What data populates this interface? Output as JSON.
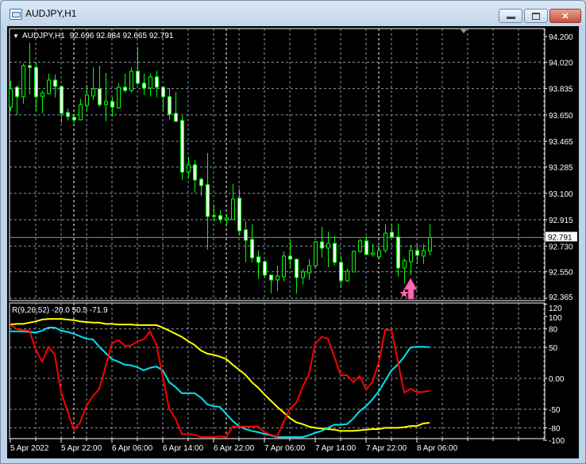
{
  "window": {
    "title": "AUDJPY,H1",
    "buttons": {
      "minimize": "minimize-icon",
      "maximize": "maximize-icon",
      "close": "close-icon"
    }
  },
  "chart_header": {
    "symbol": "AUDJPY,H1",
    "ohlc": "92.696 92.884 92.665 92.791"
  },
  "indicator_header": {
    "label": "R(9,26,52) -20.0 50.5 -71.9"
  },
  "colors": {
    "bull_body": "#000000",
    "bear_body": "#ffffff",
    "candle_outline": "#00ff00",
    "grid": "#8a96a8",
    "red_line": "#ff0000",
    "cyan_line": "#00e5ee",
    "yellow_line": "#ffff00",
    "marker": "#ff69b4",
    "background": "#000000"
  },
  "current_price": "92.791",
  "price_axis": [
    "94.200",
    "94.020",
    "93.835",
    "93.650",
    "93.465",
    "93.285",
    "93.100",
    "92.915",
    "92.730",
    "92.550",
    "92.365"
  ],
  "indicator_axis": [
    "120",
    "100",
    "80",
    "50",
    "0.00",
    "-50",
    "-80",
    "-100"
  ],
  "time_axis": [
    "5 Apr 2022",
    "5 Apr 22:00",
    "6 Apr 06:00",
    "6 Apr 14:00",
    "6 Apr 22:00",
    "7 Apr 06:00",
    "7 Apr 14:00",
    "7 Apr 22:00",
    "8 Apr 06:00"
  ],
  "chart_data": [
    {
      "type": "candlestick",
      "symbol": "AUDJPY",
      "timeframe": "H1",
      "ylim": [
        92.365,
        94.2
      ],
      "grid": true,
      "candles": [
        [
          93.705,
          93.889,
          93.678,
          93.833
        ],
        [
          93.844,
          93.856,
          93.65,
          93.778
        ],
        [
          93.778,
          94.011,
          93.728,
          93.995
        ],
        [
          93.995,
          94.156,
          93.794,
          93.983
        ],
        [
          93.983,
          94.022,
          93.678,
          93.778
        ],
        [
          93.778,
          93.822,
          93.661,
          93.805
        ],
        [
          93.8,
          93.939,
          93.794,
          93.894
        ],
        [
          93.894,
          93.933,
          93.772,
          93.85
        ],
        [
          93.85,
          93.856,
          93.594,
          93.661
        ],
        [
          93.666,
          93.694,
          93.611,
          93.639
        ],
        [
          93.633,
          93.661,
          93.594,
          93.616
        ],
        [
          93.616,
          93.761,
          93.611,
          93.722
        ],
        [
          93.717,
          93.861,
          93.678,
          93.789
        ],
        [
          93.783,
          93.983,
          93.755,
          93.833
        ],
        [
          93.833,
          93.995,
          93.705,
          93.722
        ],
        [
          93.722,
          93.944,
          93.605,
          93.744
        ],
        [
          93.744,
          93.772,
          93.639,
          93.705
        ],
        [
          93.7,
          93.872,
          93.694,
          93.844
        ],
        [
          93.844,
          93.939,
          93.805,
          93.822
        ],
        [
          93.822,
          93.983,
          93.805,
          93.956
        ],
        [
          93.956,
          94.128,
          93.861,
          93.872
        ],
        [
          93.872,
          93.939,
          93.789,
          93.839
        ],
        [
          93.839,
          93.939,
          93.778,
          93.917
        ],
        [
          93.917,
          93.961,
          93.772,
          93.844
        ],
        [
          93.844,
          93.844,
          93.678,
          93.778
        ],
        [
          93.778,
          93.839,
          93.616,
          93.655
        ],
        [
          93.661,
          93.811,
          93.605,
          93.605
        ],
        [
          93.611,
          93.644,
          93.194,
          93.249
        ],
        [
          93.249,
          93.355,
          93.205,
          93.3
        ],
        [
          93.3,
          93.333,
          93.105,
          93.194
        ],
        [
          93.199,
          93.211,
          93.083,
          93.155
        ],
        [
          93.161,
          93.383,
          92.705,
          92.938
        ],
        [
          92.944,
          93.022,
          92.905,
          92.938
        ],
        [
          92.944,
          92.983,
          92.894,
          92.916
        ],
        [
          92.916,
          92.955,
          92.883,
          92.927
        ],
        [
          92.916,
          93.166,
          92.916,
          93.06
        ],
        [
          93.066,
          93.133,
          92.805,
          92.838
        ],
        [
          92.844,
          92.905,
          92.616,
          92.771
        ],
        [
          92.777,
          92.883,
          92.616,
          92.649
        ],
        [
          92.655,
          92.699,
          92.499,
          92.616
        ],
        [
          92.621,
          92.632,
          92.51,
          92.527
        ],
        [
          92.527,
          92.527,
          92.399,
          92.493
        ],
        [
          92.493,
          92.593,
          92.415,
          92.521
        ],
        [
          92.516,
          92.693,
          92.482,
          92.66
        ],
        [
          92.66,
          92.771,
          92.577,
          92.638
        ],
        [
          92.638,
          92.643,
          92.399,
          92.51
        ],
        [
          92.51,
          92.571,
          92.46,
          92.549
        ],
        [
          92.543,
          92.638,
          92.493,
          92.593
        ],
        [
          92.593,
          92.766,
          92.577,
          92.76
        ],
        [
          92.76,
          92.866,
          92.649,
          92.716
        ],
        [
          92.716,
          92.832,
          92.582,
          92.749
        ],
        [
          92.749,
          92.799,
          92.593,
          92.616
        ],
        [
          92.616,
          92.666,
          92.438,
          92.488
        ],
        [
          92.488,
          92.571,
          92.477,
          92.554
        ],
        [
          92.549,
          92.699,
          92.549,
          92.693
        ],
        [
          92.693,
          92.782,
          92.682,
          92.766
        ],
        [
          92.766,
          92.799,
          92.666,
          92.671
        ],
        [
          92.671,
          92.749,
          92.655,
          92.682
        ],
        [
          92.655,
          92.732,
          92.655,
          92.699
        ],
        [
          92.699,
          92.883,
          92.682,
          92.821
        ],
        [
          92.827,
          92.888,
          92.788,
          92.794
        ],
        [
          92.794,
          92.888,
          92.516,
          92.577
        ],
        [
          92.577,
          92.643,
          92.466,
          92.627
        ],
        [
          92.621,
          92.738,
          92.527,
          92.699
        ],
        [
          92.699,
          92.744,
          92.605,
          92.666
        ],
        [
          92.66,
          92.744,
          92.605,
          92.699
        ],
        [
          92.696,
          92.884,
          92.665,
          92.791
        ]
      ],
      "current_price": 92.791,
      "markers": [
        {
          "type": "up-arrow",
          "candle_index": 63
        },
        {
          "type": "star",
          "candle_index": 62
        }
      ]
    },
    {
      "type": "line",
      "ylim": [
        -100,
        120
      ],
      "grid": true,
      "series": [
        {
          "color": "#ff0000",
          "values": [
            86,
            80,
            78,
            77,
            47,
            27,
            51,
            38,
            -23,
            -53,
            -83,
            -71,
            -44,
            -29,
            -17,
            19,
            56,
            62,
            53,
            53,
            60,
            63,
            76,
            54,
            3,
            -49,
            -65,
            -90,
            -90,
            -91,
            -95,
            -95,
            -95,
            -94,
            -95,
            -78,
            -78,
            -78,
            -78,
            -78,
            -87,
            -91,
            -94,
            -71,
            -49,
            -40,
            -14,
            6,
            56,
            67,
            64,
            35,
            5,
            5,
            -6,
            4,
            -18,
            -6,
            26,
            78,
            78,
            28,
            -23,
            -17,
            -22,
            -22,
            -20.0
          ]
        },
        {
          "color": "#00e5ee",
          "values": [
            76,
            76,
            76,
            75,
            74,
            77,
            82,
            82,
            77,
            75,
            72,
            68,
            64,
            63,
            51,
            41,
            31,
            27,
            22,
            21,
            18,
            13,
            17,
            19,
            13,
            -6,
            -14,
            -24,
            -24,
            -24,
            -31,
            -42,
            -45,
            -46,
            -58,
            -69,
            -77,
            -82,
            -85,
            -87,
            -90,
            -92,
            -95,
            -95,
            -95,
            -95,
            -95,
            -92,
            -88,
            -85,
            -80,
            -75,
            -75,
            -74,
            -65,
            -53,
            -45,
            -34,
            -21,
            -4,
            13,
            22,
            35,
            50,
            51,
            51,
            50.5
          ]
        },
        {
          "color": "#ffff00",
          "values": [
            87,
            88,
            88,
            90,
            92,
            95,
            96,
            96,
            96,
            95,
            94,
            92,
            91,
            90,
            90,
            88,
            88,
            87,
            87,
            87,
            86,
            86,
            86,
            86,
            82,
            77,
            72,
            67,
            60,
            54,
            45,
            40,
            38,
            35,
            31,
            22,
            14,
            6,
            -6,
            -15,
            -26,
            -36,
            -46,
            -55,
            -64,
            -71,
            -74,
            -78,
            -80,
            -81,
            -82,
            -83,
            -85,
            -85,
            -85,
            -84,
            -83,
            -82,
            -82,
            -80,
            -80,
            -80,
            -79,
            -77,
            -77,
            -73,
            -71.9
          ]
        }
      ]
    }
  ]
}
